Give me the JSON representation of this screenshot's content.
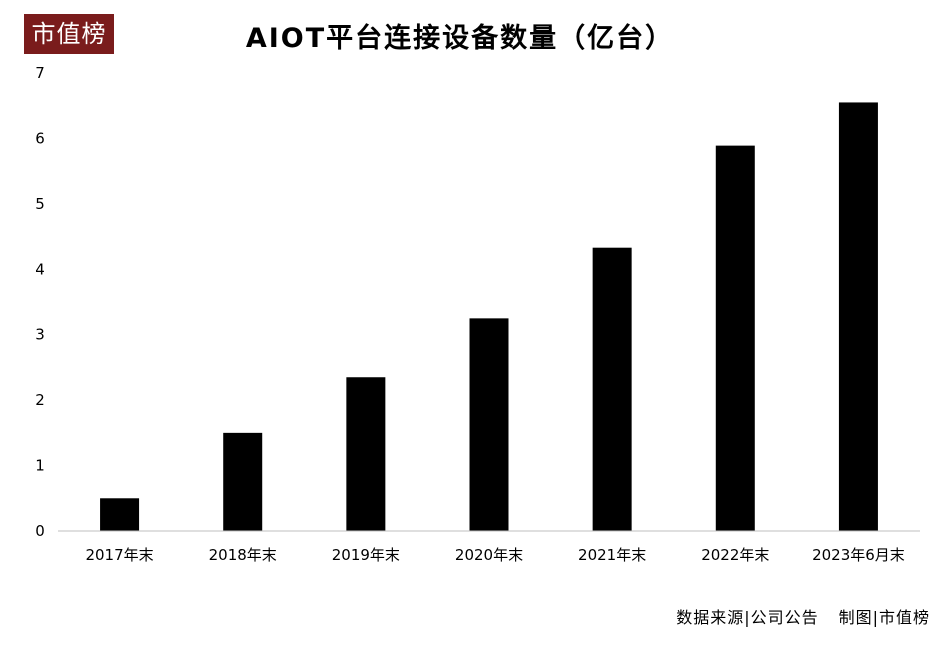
{
  "logo": {
    "text": "市值榜"
  },
  "footer": {
    "source": "数据来源|公司公告",
    "credit": "制图|市值榜"
  },
  "chart_data": {
    "type": "bar",
    "title": "AIOT平台连接设备数量（亿台）",
    "xlabel": "",
    "ylabel": "",
    "categories": [
      "2017年末",
      "2018年末",
      "2019年末",
      "2020年末",
      "2021年末",
      "2022年末",
      "2023年6月末"
    ],
    "values": [
      0.5,
      1.5,
      2.35,
      3.25,
      4.33,
      5.89,
      6.55
    ],
    "ylim": [
      0,
      7
    ],
    "yticks": [
      0,
      1,
      2,
      3,
      4,
      5,
      6,
      7
    ],
    "grid": false,
    "bar_color": "#000000",
    "logo_color": "#7a1c1c"
  }
}
